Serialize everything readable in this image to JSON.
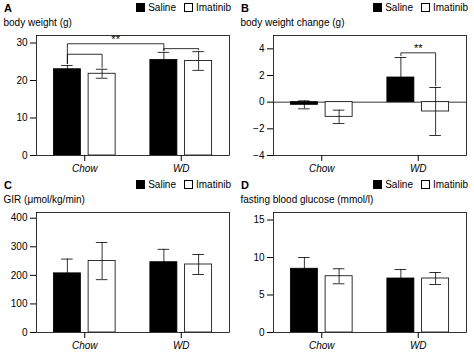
{
  "chart_data": [
    {
      "type": "bar",
      "title": "A",
      "ylabel": "body weight (g)",
      "categories": [
        "Chow",
        "WD"
      ],
      "series": [
        {
          "name": "Saline",
          "color": "#000000",
          "values": [
            23.0,
            25.5
          ],
          "errors": [
            1.0,
            2.0
          ]
        },
        {
          "name": "Imatinib",
          "color": "#ffffff",
          "values": [
            21.8,
            25.2
          ],
          "errors": [
            1.2,
            2.5
          ]
        }
      ],
      "ylim": [
        0,
        32
      ],
      "yticks": [
        0,
        10,
        20,
        30
      ],
      "grid": false,
      "legend": "upper right",
      "annotations": [
        {
          "text": "**",
          "from": [
            "Chow",
            "Saline"
          ],
          "to": [
            "WD",
            "Saline"
          ],
          "y": 29.8
        },
        {
          "from": [
            "Chow",
            "Saline"
          ],
          "to": [
            "Chow",
            "Imatinib"
          ],
          "y": 27.0
        },
        {
          "from": [
            "WD",
            "Saline"
          ],
          "to": [
            "WD",
            "Imatinib"
          ],
          "y": 28.5
        }
      ]
    },
    {
      "type": "bar",
      "title": "B",
      "ylabel": "body weight change (g)",
      "categories": [
        "Chow",
        "WD"
      ],
      "series": [
        {
          "name": "Saline",
          "color": "#000000",
          "values": [
            -0.2,
            1.85
          ],
          "errors": [
            0.3,
            1.5
          ]
        },
        {
          "name": "Imatinib",
          "color": "#ffffff",
          "values": [
            -1.1,
            -0.7
          ],
          "errors": [
            0.5,
            1.8
          ]
        }
      ],
      "ylim": [
        -4,
        5
      ],
      "yticks": [
        -4,
        -2,
        0,
        2,
        4
      ],
      "grid": false,
      "legend": "upper right",
      "annotations": [
        {
          "text": "**",
          "from": [
            "WD",
            "Saline"
          ],
          "to": [
            "WD",
            "Imatinib"
          ],
          "y": 3.7
        }
      ]
    },
    {
      "type": "bar",
      "title": "C",
      "ylabel": "GIR (μmol/kg/min)",
      "categories": [
        "Chow",
        "WD"
      ],
      "series": [
        {
          "name": "Saline",
          "color": "#000000",
          "values": [
            207,
            246
          ],
          "errors": [
            50,
            45
          ]
        },
        {
          "name": "Imatinib",
          "color": "#ffffff",
          "values": [
            250,
            238
          ],
          "errors": [
            65,
            35
          ]
        }
      ],
      "ylim": [
        0,
        420
      ],
      "yticks": [
        0,
        100,
        200,
        300,
        400
      ],
      "grid": false,
      "legend": "upper right"
    },
    {
      "type": "bar",
      "title": "D",
      "ylabel": "fasting blood glucose (mmol/l)",
      "categories": [
        "Chow",
        "WD"
      ],
      "series": [
        {
          "name": "Saline",
          "color": "#000000",
          "values": [
            8.5,
            7.2
          ],
          "errors": [
            1.5,
            1.2
          ]
        },
        {
          "name": "Imatinib",
          "color": "#ffffff",
          "values": [
            7.5,
            7.2
          ],
          "errors": [
            1.0,
            0.8
          ]
        }
      ],
      "ylim": [
        0,
        16
      ],
      "yticks": [
        0,
        5,
        10,
        15
      ],
      "grid": false,
      "legend": "upper right"
    }
  ]
}
